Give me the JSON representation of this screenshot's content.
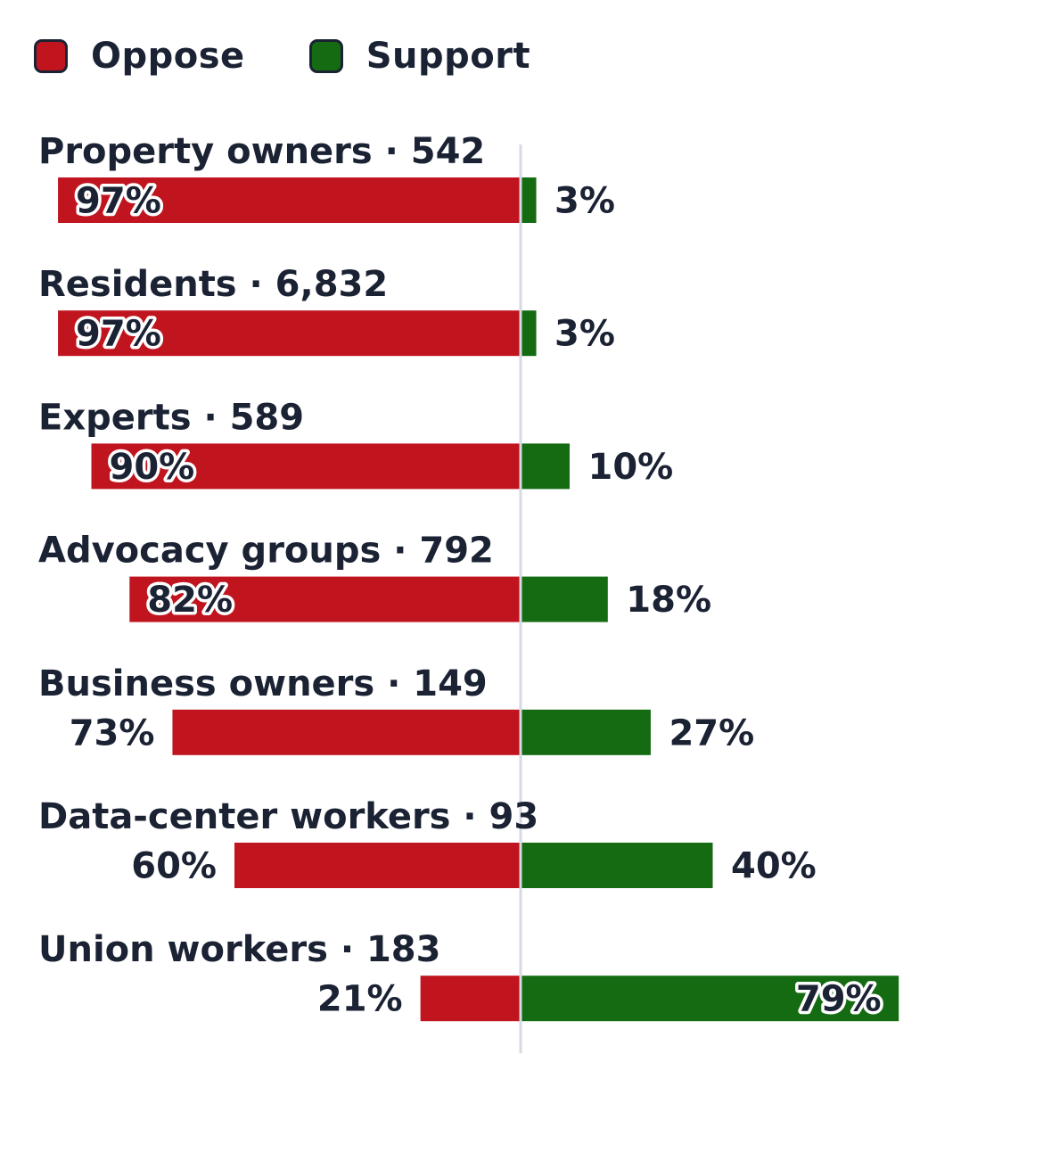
{
  "legend": {
    "oppose_label": "Oppose",
    "support_label": "Support"
  },
  "colors": {
    "oppose": "#c0141f",
    "support": "#146b12",
    "text": "#1a2233",
    "divider": "#d5dae3"
  },
  "chart_data": {
    "type": "bar",
    "orientation": "horizontal-diverging",
    "stacked": true,
    "categories": [
      "Property owners · 542",
      "Residents · 6,832",
      "Experts · 589",
      "Advocacy groups · 792",
      "Business owners · 149",
      "Data-center workers · 93",
      "Union workers · 183"
    ],
    "series": [
      {
        "name": "Oppose",
        "values": [
          97,
          97,
          90,
          82,
          73,
          60,
          21
        ],
        "labels": [
          "97%",
          "97%",
          "90%",
          "82%",
          "73%",
          "60%",
          "21%"
        ]
      },
      {
        "name": "Support",
        "values": [
          3,
          3,
          10,
          18,
          27,
          40,
          79
        ],
        "labels": [
          "3%",
          "3%",
          "10%",
          "18%",
          "27%",
          "40%",
          "79%"
        ]
      }
    ],
    "unit": "%",
    "legend_position": "top-left",
    "grid": false
  }
}
